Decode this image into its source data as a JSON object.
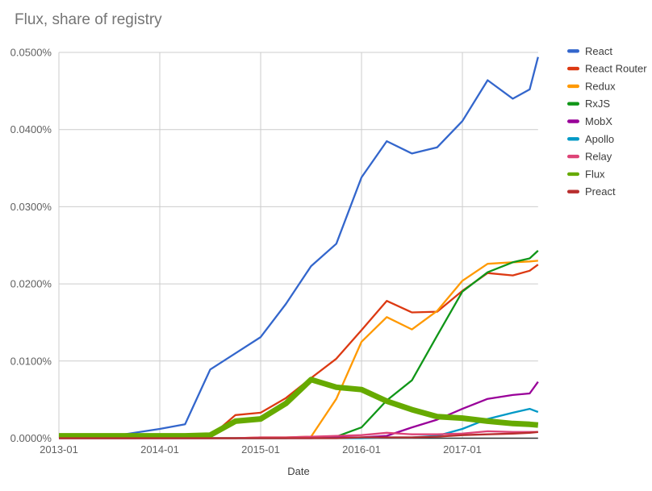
{
  "title": "Flux, share of registry",
  "chart_data": {
    "type": "line",
    "title": "Flux, share of registry",
    "xlabel": "Date",
    "ylabel": "",
    "grid": true,
    "legend_position": "right",
    "ylim": [
      0,
      0.05
    ],
    "y_ticks": [
      0,
      0.01,
      0.02,
      0.03,
      0.04,
      0.05
    ],
    "y_tick_labels": [
      "0.0000%",
      "0.0100%",
      "0.0200%",
      "0.0300%",
      "0.0400%",
      "0.0500%"
    ],
    "x_tick_months": [
      0,
      12,
      24,
      36,
      48
    ],
    "x_tick_labels": [
      "2013-01",
      "2014-01",
      "2015-01",
      "2016-01",
      "2017-01"
    ],
    "x_months": [
      0,
      3,
      6,
      9,
      12,
      15,
      18,
      21,
      24,
      27,
      30,
      33,
      36,
      39,
      42,
      45,
      48,
      51,
      54,
      56,
      57
    ],
    "x_labels": [
      "2013-01",
      "2013-04",
      "2013-07",
      "2013-10",
      "2014-01",
      "2014-04",
      "2014-07",
      "2014-10",
      "2015-01",
      "2015-04",
      "2015-07",
      "2015-10",
      "2016-01",
      "2016-04",
      "2016-07",
      "2016-10",
      "2017-01",
      "2017-04",
      "2017-07",
      "2017-09",
      "2017-10"
    ],
    "value_unit": "% of registry",
    "series": [
      {
        "name": "React",
        "color": "#3366CC",
        "line_width": 2.3,
        "values": [
          0.0001,
          0.0001,
          0.0002,
          0.0007,
          0.0012,
          0.0018,
          0.0089,
          0.011,
          0.0131,
          0.0174,
          0.0223,
          0.0252,
          0.0338,
          0.0385,
          0.0369,
          0.0377,
          0.0411,
          0.0464,
          0.044,
          0.0452,
          0.0494
        ]
      },
      {
        "name": "React Router",
        "color": "#DC3912",
        "line_width": 2.3,
        "values": [
          0,
          0,
          0,
          0,
          0.0001,
          0.0001,
          0.0002,
          0.003,
          0.0033,
          0.0052,
          0.0078,
          0.0103,
          0.014,
          0.0178,
          0.0163,
          0.0164,
          0.0191,
          0.0214,
          0.0211,
          0.0217,
          0.0225
        ]
      },
      {
        "name": "Redux",
        "color": "#FF9900",
        "line_width": 2.3,
        "values": [
          0,
          0,
          0,
          0,
          0,
          0,
          0,
          0,
          0.0001,
          0.0001,
          0.0002,
          0.0051,
          0.0125,
          0.0157,
          0.0141,
          0.0165,
          0.0204,
          0.0226,
          0.0228,
          0.0229,
          0.023
        ]
      },
      {
        "name": "RxJS",
        "color": "#109618",
        "line_width": 2.3,
        "values": [
          0,
          0,
          0,
          0,
          0,
          0,
          0,
          0,
          0,
          0,
          0.0001,
          0.0002,
          0.0014,
          0.0049,
          0.0075,
          0.0133,
          0.019,
          0.0215,
          0.0228,
          0.0233,
          0.0243
        ]
      },
      {
        "name": "MobX",
        "color": "#990099",
        "line_width": 2.3,
        "values": [
          0,
          0,
          0,
          0,
          0,
          0,
          0,
          0,
          0,
          0,
          0,
          0.0001,
          0.0001,
          0.0003,
          0.0014,
          0.0024,
          0.0038,
          0.0051,
          0.0056,
          0.0058,
          0.0073
        ]
      },
      {
        "name": "Apollo",
        "color": "#0099C6",
        "line_width": 2.3,
        "values": [
          0,
          0,
          0,
          0,
          0,
          0,
          0,
          0,
          0,
          0,
          0,
          0,
          0,
          0.0001,
          0.0001,
          0.0003,
          0.0012,
          0.0025,
          0.0033,
          0.0038,
          0.0034
        ]
      },
      {
        "name": "Relay",
        "color": "#DD4477",
        "line_width": 2.3,
        "values": [
          0,
          0,
          0,
          0,
          0,
          0,
          0,
          0,
          0.0001,
          0.0001,
          0.0002,
          0.0003,
          0.0004,
          0.0007,
          0.0005,
          0.0005,
          0.0006,
          0.0009,
          0.0008,
          0.0008,
          0.0008
        ]
      },
      {
        "name": "Flux",
        "color": "#66AA00",
        "line_width": 7,
        "values": [
          0.0003,
          0.0003,
          0.0003,
          0.0003,
          0.0003,
          0.0003,
          0.0004,
          0.0022,
          0.0025,
          0.0045,
          0.0076,
          0.0066,
          0.0063,
          0.0048,
          0.0037,
          0.0028,
          0.0026,
          0.0022,
          0.0019,
          0.0018,
          0.0017
        ]
      },
      {
        "name": "Preact",
        "color": "#B82E2E",
        "line_width": 2.3,
        "values": [
          0,
          0,
          0,
          0,
          0,
          0,
          0,
          0,
          0,
          0,
          0,
          0,
          0.0001,
          0.0001,
          0.0001,
          0.0002,
          0.0004,
          0.0005,
          0.0006,
          0.0007,
          0.0008
        ]
      }
    ]
  }
}
